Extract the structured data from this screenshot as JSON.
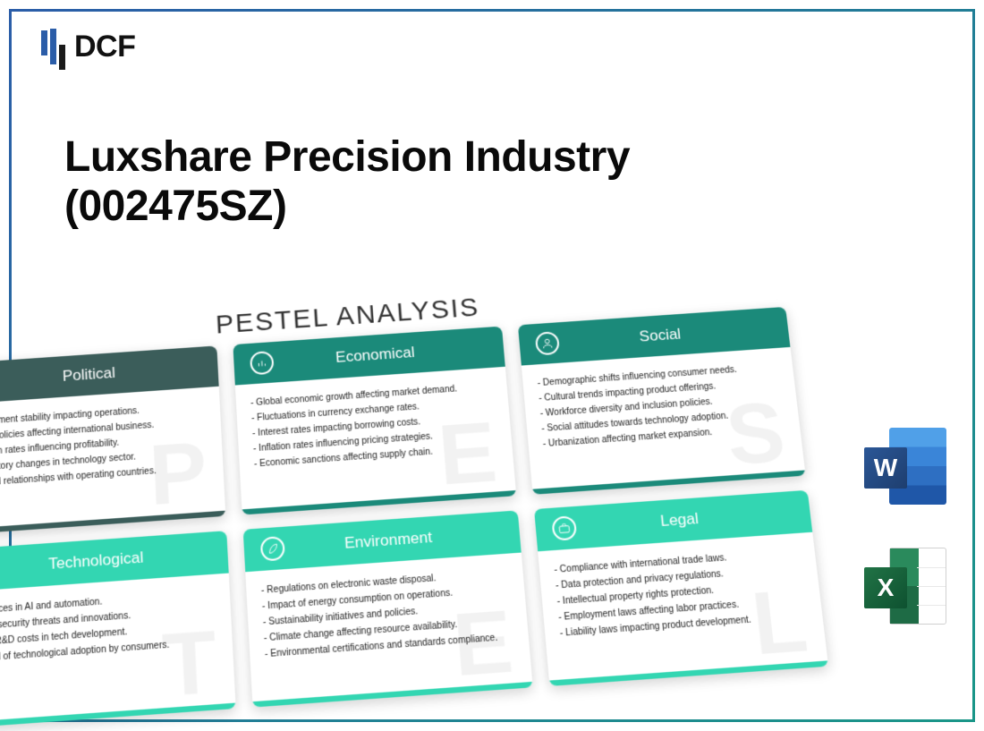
{
  "logo_text": "DCF",
  "title_line1": "Luxshare Precision Industry",
  "title_line2": "(002475SZ)",
  "pestel_heading": "PESTEL ANALYSIS",
  "colors": {
    "dark_teal": "#3b5d5a",
    "teal": "#1b8a7a",
    "mint": "#33d6b2",
    "logo_blue": "#2b5da8"
  },
  "file_icons": [
    {
      "kind": "word",
      "letter": "W"
    },
    {
      "kind": "excel",
      "letter": "X"
    }
  ],
  "cards": [
    {
      "title": "Political",
      "watermark": "P",
      "header_color": "#3b5d5a",
      "footer_color": "#3b5d5a",
      "icon": "building",
      "items": [
        "Government stability impacting operations.",
        "Trade policies affecting international business.",
        "Taxation rates influencing profitability.",
        "Regulatory changes in technology sector.",
        "Political relationships with operating countries."
      ]
    },
    {
      "title": "Economical",
      "watermark": "E",
      "header_color": "#1b8a7a",
      "footer_color": "#1b8a7a",
      "icon": "chart",
      "items": [
        "Global economic growth affecting market demand.",
        "Fluctuations in currency exchange rates.",
        "Interest rates impacting borrowing costs.",
        "Inflation rates influencing pricing strategies.",
        "Economic sanctions affecting supply chain."
      ]
    },
    {
      "title": "Social",
      "watermark": "S",
      "header_color": "#1b8a7a",
      "footer_color": "#1b8a7a",
      "icon": "person",
      "items": [
        "Demographic shifts influencing consumer needs.",
        "Cultural trends impacting product offerings.",
        "Workforce diversity and inclusion policies.",
        "Social attitudes towards technology adoption.",
        "Urbanization affecting market expansion."
      ]
    },
    {
      "title": "Technological",
      "watermark": "T",
      "header_color": "#33d6b2",
      "footer_color": "#33d6b2",
      "icon": "gear",
      "items": [
        "Advances in AI and automation.",
        "Cybersecurity threats and innovations.",
        "High R&D costs in tech development.",
        "Speed of technological adoption by consumers."
      ]
    },
    {
      "title": "Environment",
      "watermark": "E",
      "header_color": "#33d6b2",
      "footer_color": "#33d6b2",
      "icon": "leaf",
      "items": [
        "Regulations on electronic waste disposal.",
        "Impact of energy consumption on operations.",
        "Sustainability initiatives and policies.",
        "Climate change affecting resource availability.",
        "Environmental certifications and standards compliance."
      ]
    },
    {
      "title": "Legal",
      "watermark": "L",
      "header_color": "#33d6b2",
      "footer_color": "#33d6b2",
      "icon": "briefcase",
      "items": [
        "Compliance with international trade laws.",
        "Data protection and privacy regulations.",
        "Intellectual property rights protection.",
        "Employment laws affecting labor practices.",
        "Liability laws impacting product development."
      ]
    }
  ]
}
